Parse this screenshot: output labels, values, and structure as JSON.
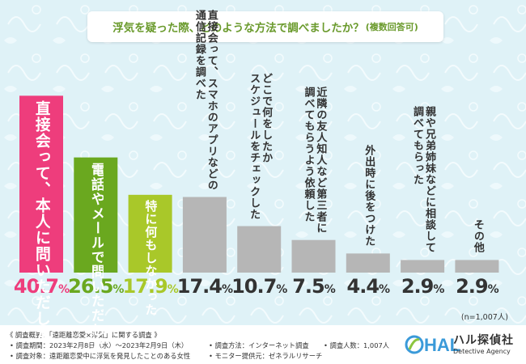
{
  "title": {
    "main": "浮気を疑った際、どのような方法で調べましたか？",
    "note": "(複数回答可)"
  },
  "chart_data": {
    "type": "bar",
    "title": "浮気を疑った際、どのような方法で調べましたか？(複数回答可)",
    "categories": [
      "直接会って、本人に問いただした",
      "電話やメールで問いただした",
      "特に何もしなかった",
      "直接会って、スマホのアプリなどの\n通信記録を調べた",
      "どこで何をしたか\nスケジュールをチェックした",
      "近隣の友人知人など第三者に\n調べてもらうよう依頼した",
      "外出時に後をつけた",
      "親や兄弟姉妹などに相談して\n調べてもらった",
      "その他"
    ],
    "values": [
      40.7,
      26.5,
      17.9,
      17.4,
      10.7,
      7.5,
      4.4,
      2.9,
      2.9
    ],
    "value_labels": [
      "40.7",
      "26.5",
      "17.9",
      "17.4",
      "10.7",
      "7.5",
      "4.4",
      "2.9",
      "2.9"
    ],
    "unit": "%",
    "ylim": [
      0,
      43
    ],
    "grid": false,
    "sample_size": "(n=1,007人)",
    "colors": [
      "#ee3d7c",
      "#6aa81f",
      "#a9c829",
      "#b6b6b6",
      "#b6b6b6",
      "#b6b6b6",
      "#b6b6b6",
      "#b6b6b6",
      "#b6b6b6"
    ],
    "label_colors": [
      "#ee3d7c",
      "#6aa81f",
      "#a9c829",
      "#333333",
      "#333333",
      "#333333",
      "#333333",
      "#333333",
      "#333333"
    ]
  },
  "footer": {
    "overview": "《 調査概要：「遠距離恋愛×浮気」に関する調査 》",
    "period": "• 調査期間：2023年2月8日（水）〜2023年2月9日（木）",
    "target": "• 調査対象：遠距離恋愛中に浮気を発見したことのある女性",
    "method": "• 調査方法：インターネット調査",
    "provider": "• モニター提供元：ゼネラルリサーチ",
    "respondents": "• 調査人数：1,007人"
  },
  "logo": {
    "mark": "HAL",
    "name": "ハル探偵社",
    "sub": "Detective Agency"
  }
}
